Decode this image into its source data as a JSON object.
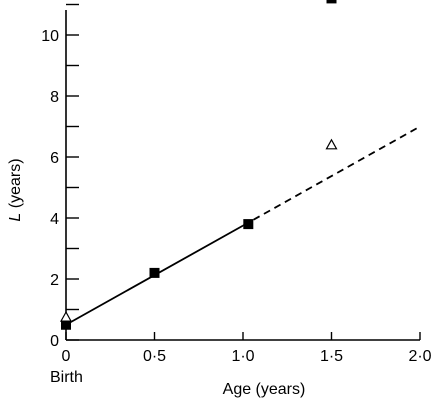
{
  "chart_data": {
    "type": "scatter",
    "xlabel": "Age (years)",
    "ylabel_italic": "L",
    "ylabel_rest": " (years)",
    "xlim": [
      0,
      2.0
    ],
    "ylim": [
      0,
      11
    ],
    "grid": false,
    "x_ticks": [
      {
        "value": 0,
        "label": "0"
      },
      {
        "value": 0.5,
        "label": "0·5"
      },
      {
        "value": 1.0,
        "label": "1·0"
      },
      {
        "value": 1.5,
        "label": "1·5"
      },
      {
        "value": 2.0,
        "label": "2·0"
      }
    ],
    "x_sublabel": {
      "value": 0,
      "label": "Birth"
    },
    "y_ticks": [
      {
        "value": 0,
        "label": "0"
      },
      {
        "value": 2,
        "label": "2"
      },
      {
        "value": 4,
        "label": "4"
      },
      {
        "value": 6,
        "label": "6"
      },
      {
        "value": 8,
        "label": "8"
      },
      {
        "value": 10,
        "label": "10"
      }
    ],
    "y_minor_ticks": [
      1,
      3,
      5,
      7,
      9,
      11
    ],
    "series": [
      {
        "marker": "filled-square",
        "points": [
          {
            "x": 0.0,
            "y": 0.5
          },
          {
            "x": 0.5,
            "y": 2.2
          },
          {
            "x": 1.03,
            "y": 3.8
          },
          {
            "x": 1.5,
            "y": 11.2
          }
        ]
      },
      {
        "marker": "open-triangle",
        "points": [
          {
            "x": 0.0,
            "y": 0.75
          },
          {
            "x": 1.5,
            "y": 6.4
          }
        ]
      }
    ],
    "lines": [
      {
        "style": "solid",
        "from": {
          "x": 0.0,
          "y": 0.5
        },
        "to": {
          "x": 1.0,
          "y": 3.75
        }
      },
      {
        "style": "dashed",
        "from": {
          "x": 1.0,
          "y": 3.75
        },
        "to": {
          "x": 2.0,
          "y": 7.0
        }
      }
    ]
  }
}
